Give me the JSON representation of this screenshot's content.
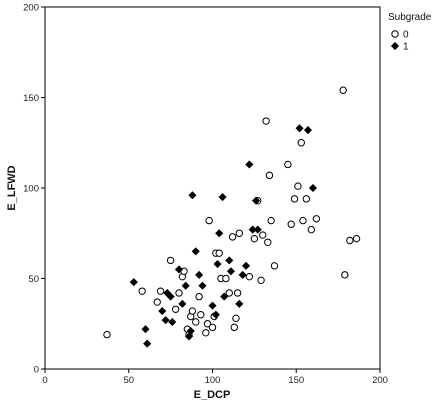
{
  "chart_data": {
    "type": "scatter",
    "xlabel": "E_DCP",
    "ylabel": "E_LFWD",
    "xlim": [
      0,
      200
    ],
    "ylim": [
      0,
      200
    ],
    "x_ticks": [
      "0",
      "50",
      "100",
      "150",
      "200"
    ],
    "y_ticks": [
      "0",
      "50",
      "100",
      "150",
      "200"
    ],
    "grid": false,
    "legend": {
      "title": "Subgrade",
      "placement": "top-right-outside",
      "entries": [
        {
          "label": "0",
          "marker": "open-circle"
        },
        {
          "label": "1",
          "marker": "filled-diamond"
        }
      ]
    },
    "series": [
      {
        "name": "0",
        "marker": "open-circle",
        "color": "#000000",
        "points": [
          [
            37,
            19
          ],
          [
            58,
            43
          ],
          [
            67,
            37
          ],
          [
            69,
            43
          ],
          [
            75,
            60
          ],
          [
            78,
            33
          ],
          [
            80,
            42
          ],
          [
            82,
            51
          ],
          [
            83,
            54
          ],
          [
            85,
            22
          ],
          [
            86,
            19
          ],
          [
            87,
            29
          ],
          [
            88,
            32
          ],
          [
            90,
            26
          ],
          [
            92,
            40
          ],
          [
            93,
            30
          ],
          [
            96,
            20
          ],
          [
            97,
            25
          ],
          [
            98,
            82
          ],
          [
            100,
            23
          ],
          [
            101,
            29
          ],
          [
            102,
            64
          ],
          [
            104,
            64
          ],
          [
            105,
            50
          ],
          [
            108,
            50
          ],
          [
            110,
            42
          ],
          [
            112,
            73
          ],
          [
            113,
            23
          ],
          [
            114,
            28
          ],
          [
            115,
            42
          ],
          [
            116,
            75
          ],
          [
            122,
            51
          ],
          [
            125,
            72
          ],
          [
            127,
            93
          ],
          [
            129,
            49
          ],
          [
            130,
            74
          ],
          [
            132,
            137
          ],
          [
            133,
            70
          ],
          [
            134,
            107
          ],
          [
            135,
            82
          ],
          [
            137,
            57
          ],
          [
            145,
            113
          ],
          [
            147,
            80
          ],
          [
            149,
            94
          ],
          [
            151,
            101
          ],
          [
            153,
            125
          ],
          [
            154,
            82
          ],
          [
            156,
            94
          ],
          [
            159,
            77
          ],
          [
            162,
            83
          ],
          [
            178,
            154
          ],
          [
            179,
            52
          ],
          [
            182,
            71
          ],
          [
            186,
            72
          ]
        ]
      },
      {
        "name": "1",
        "marker": "filled-diamond",
        "color": "#000000",
        "points": [
          [
            53,
            48
          ],
          [
            60,
            22
          ],
          [
            61,
            14
          ],
          [
            70,
            32
          ],
          [
            72,
            27
          ],
          [
            73,
            42
          ],
          [
            75,
            40
          ],
          [
            76,
            26
          ],
          [
            80,
            55
          ],
          [
            82,
            36
          ],
          [
            84,
            46
          ],
          [
            86,
            18
          ],
          [
            87,
            21
          ],
          [
            88,
            96
          ],
          [
            90,
            65
          ],
          [
            92,
            52
          ],
          [
            94,
            46
          ],
          [
            100,
            35
          ],
          [
            102,
            30
          ],
          [
            103,
            58
          ],
          [
            104,
            75
          ],
          [
            106,
            95
          ],
          [
            107,
            40
          ],
          [
            110,
            60
          ],
          [
            111,
            54
          ],
          [
            116,
            36
          ],
          [
            118,
            52
          ],
          [
            120,
            57
          ],
          [
            122,
            113
          ],
          [
            124,
            77
          ],
          [
            126,
            93
          ],
          [
            127,
            77
          ],
          [
            152,
            133
          ],
          [
            157,
            132
          ],
          [
            160,
            100
          ]
        ]
      }
    ]
  }
}
